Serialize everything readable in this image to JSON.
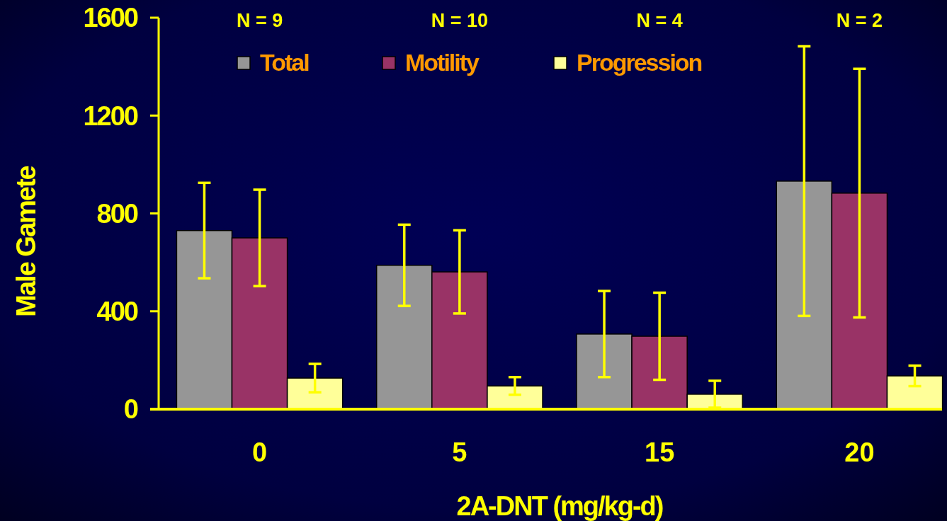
{
  "chart_data": {
    "type": "bar",
    "xlabel": "2A-DNT (mg/kg-d)",
    "ylabel": "Male Gamete",
    "categories": [
      "0",
      "5",
      "15",
      "20"
    ],
    "series": [
      {
        "name": "Total",
        "color": "#969696",
        "values": [
          730,
          588,
          307,
          932
        ],
        "errors": [
          195,
          166,
          176,
          551
        ]
      },
      {
        "name": "Motility",
        "color": "#993366",
        "values": [
          700,
          561,
          298,
          883
        ],
        "errors": [
          197,
          170,
          178,
          508
        ]
      },
      {
        "name": "Progression",
        "color": "#ffff99",
        "values": [
          127,
          95,
          61,
          136
        ],
        "errors": [
          58,
          36,
          55,
          42
        ]
      }
    ],
    "ylim": [
      0,
      1600
    ],
    "yticks": [
      0,
      400,
      800,
      1200,
      1600
    ],
    "grid": false,
    "legend": "top",
    "annotations": [
      "N = 9",
      "N = 10",
      "N = 4",
      "N = 2"
    ]
  }
}
